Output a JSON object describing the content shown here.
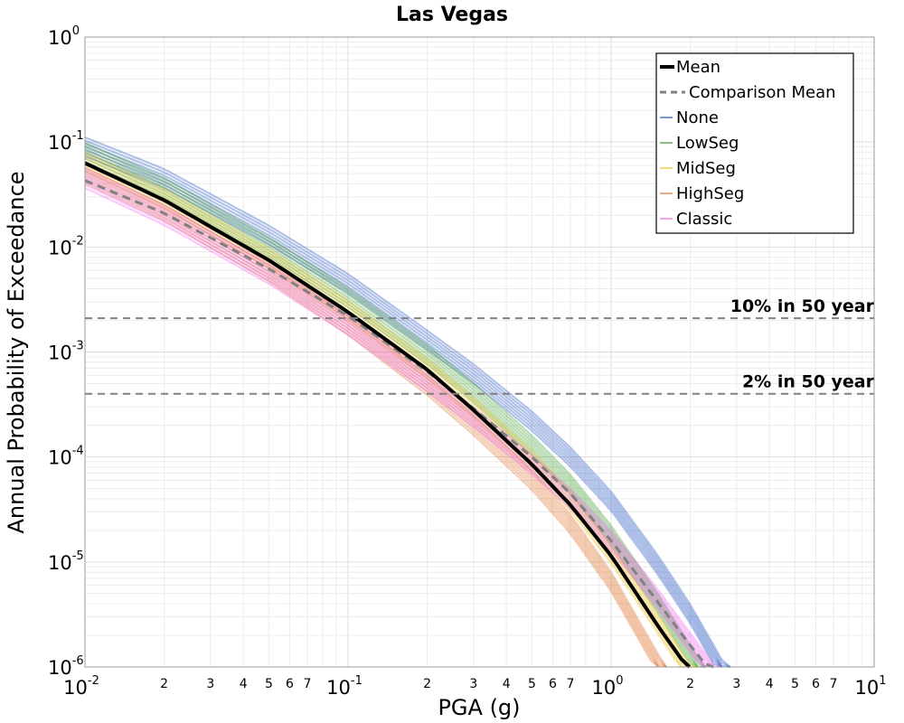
{
  "chart_data": {
    "type": "line",
    "title": "Las Vegas",
    "xlabel": "PGA (g)",
    "ylabel": "Annual Probability of Exceedance",
    "xscale": "log",
    "yscale": "log",
    "xlim": [
      0.01,
      10
    ],
    "ylim": [
      1e-06,
      1
    ],
    "grid": true,
    "legend_position": "top-right",
    "x_ticks": [
      {
        "base": "10",
        "exp": "-2"
      },
      {
        "base": "10",
        "exp": "-1"
      },
      {
        "base": "10",
        "exp": "0"
      },
      {
        "base": "10",
        "exp": "1"
      }
    ],
    "y_ticks": [
      {
        "base": "10",
        "exp": "0"
      },
      {
        "base": "10",
        "exp": "-1"
      },
      {
        "base": "10",
        "exp": "-2"
      },
      {
        "base": "10",
        "exp": "-3"
      },
      {
        "base": "10",
        "exp": "-4"
      },
      {
        "base": "10",
        "exp": "-5"
      },
      {
        "base": "10",
        "exp": "-6"
      }
    ],
    "x_minor_tick_labels": [
      "2",
      "3",
      "4",
      "5",
      "6",
      "7"
    ],
    "reference_lines": [
      {
        "label": "10% in 50 year",
        "y": 0.0021
      },
      {
        "label": "2% in 50 year",
        "y": 0.0004
      }
    ],
    "legend": [
      {
        "name": "Mean",
        "color": "#000000",
        "style": "solid-thick"
      },
      {
        "name": "Comparison Mean",
        "color": "#808080",
        "style": "dashed"
      },
      {
        "name": "None",
        "color": "#1f4fbf",
        "style": "solid-thin"
      },
      {
        "name": "LowSeg",
        "color": "#3a9a2a",
        "style": "solid-thin"
      },
      {
        "name": "MidSeg",
        "color": "#e8c020",
        "style": "solid-thin"
      },
      {
        "name": "HighSeg",
        "color": "#e0702a",
        "style": "solid-thin"
      },
      {
        "name": "Classic",
        "color": "#f060f0",
        "style": "solid-thin"
      }
    ],
    "series": [
      {
        "name": "Mean",
        "x": [
          0.01,
          0.02,
          0.05,
          0.1,
          0.2,
          0.3,
          0.5,
          0.7,
          1.0,
          1.5,
          2.0
        ],
        "y": [
          0.063,
          0.028,
          0.0075,
          0.0024,
          0.00068,
          0.00028,
          8.5e-05,
          3.5e-05,
          1.15e-05,
          2.5e-06,
          9e-07
        ]
      },
      {
        "name": "Comparison Mean",
        "x": [
          0.01,
          0.02,
          0.05,
          0.1,
          0.2,
          0.3,
          0.5,
          0.7,
          1.0,
          1.5,
          2.0,
          2.5
        ],
        "y": [
          0.043,
          0.021,
          0.0062,
          0.0022,
          0.00065,
          0.00029,
          0.0001,
          4.5e-05,
          1.6e-05,
          4.2e-06,
          1.6e-06,
          8e-07
        ]
      },
      {
        "name": "None",
        "x": [
          0.01,
          0.02,
          0.05,
          0.1,
          0.2,
          0.3,
          0.5,
          0.7,
          1.0,
          1.5,
          2.0,
          2.5
        ],
        "y": [
          0.09,
          0.045,
          0.013,
          0.0045,
          0.0013,
          0.00062,
          0.00022,
          0.0001,
          3.8e-05,
          9.5e-06,
          3.2e-06,
          1.2e-06
        ]
      },
      {
        "name": "LowSeg",
        "x": [
          0.01,
          0.02,
          0.05,
          0.1,
          0.2,
          0.3,
          0.5,
          0.7,
          1.0,
          1.5,
          2.0
        ],
        "y": [
          0.08,
          0.037,
          0.01,
          0.0033,
          0.00095,
          0.00041,
          0.00013,
          5.5e-05,
          1.8e-05,
          4.1e-06,
          1.3e-06
        ]
      },
      {
        "name": "MidSeg",
        "x": [
          0.01,
          0.02,
          0.05,
          0.1,
          0.2,
          0.3,
          0.5,
          0.7,
          1.0,
          1.5,
          2.0
        ],
        "y": [
          0.065,
          0.029,
          0.0078,
          0.0025,
          0.0007,
          0.0003,
          9.2e-05,
          3.8e-05,
          1.2e-05,
          2.6e-06,
          8.5e-07
        ]
      },
      {
        "name": "HighSeg",
        "x": [
          0.01,
          0.02,
          0.05,
          0.1,
          0.2,
          0.3,
          0.5,
          0.7,
          1.0,
          1.5
        ],
        "y": [
          0.05,
          0.022,
          0.0058,
          0.0018,
          0.00048,
          0.0002,
          6e-05,
          2.3e-05,
          6.5e-06,
          1.1e-06
        ]
      },
      {
        "name": "Classic",
        "x": [
          0.01,
          0.02,
          0.05,
          0.1,
          0.2,
          0.3,
          0.5,
          0.7,
          1.0,
          1.5,
          2.0,
          2.5
        ],
        "y": [
          0.045,
          0.02,
          0.0055,
          0.0018,
          0.00052,
          0.00024,
          8.5e-05,
          4e-05,
          1.6e-05,
          4.5e-06,
          1.7e-06,
          8e-07
        ]
      }
    ]
  }
}
